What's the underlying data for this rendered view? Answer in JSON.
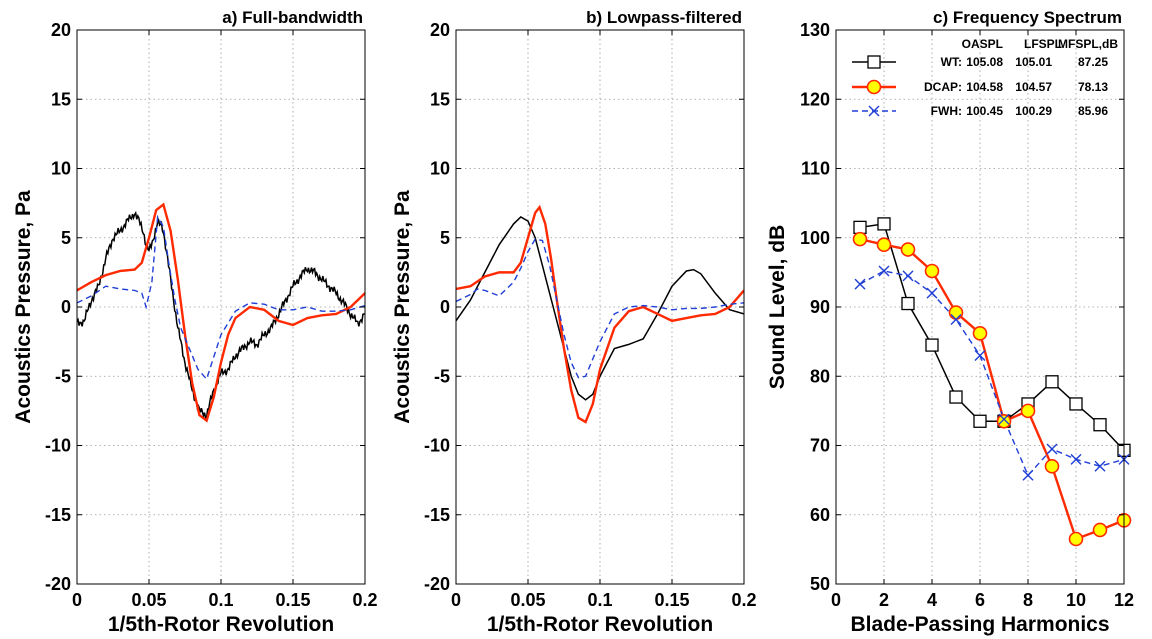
{
  "chart_data": [
    {
      "type": "line",
      "title": "a) Full-bandwidth",
      "xlabel": "1/5th-Rotor Revolution",
      "ylabel": "Acoustics Pressure, Pa",
      "xlim": [
        0,
        0.2
      ],
      "ylim": [
        -20,
        20
      ],
      "xticks": [
        0,
        0.05,
        0.1,
        0.15,
        0.2
      ],
      "xtick_labels": [
        "0",
        "0.05",
        "0.1",
        "0.15",
        "0.2"
      ],
      "yticks": [
        -20,
        -15,
        -10,
        -5,
        0,
        5,
        10,
        15,
        20
      ],
      "ytick_labels": [
        "-20",
        "-15",
        "-10",
        "-5",
        "0",
        "5",
        "10",
        "15",
        "20"
      ],
      "grid": true,
      "series": [
        {
          "color": "#000000",
          "style": "solid",
          "noisy": true,
          "x": [
            0,
            0.005,
            0.01,
            0.015,
            0.02,
            0.025,
            0.03,
            0.035,
            0.04,
            0.043,
            0.046,
            0.05,
            0.053,
            0.056,
            0.06,
            0.065,
            0.07,
            0.075,
            0.08,
            0.085,
            0.09,
            0.095,
            0.1,
            0.105,
            0.11,
            0.115,
            0.12,
            0.125,
            0.13,
            0.135,
            0.14,
            0.145,
            0.15,
            0.155,
            0.16,
            0.165,
            0.17,
            0.175,
            0.18,
            0.185,
            0.19,
            0.195,
            0.2
          ],
          "y": [
            -1.2,
            -1.0,
            0.5,
            1.5,
            3.5,
            5.0,
            5.5,
            6.2,
            6.8,
            6.3,
            5.2,
            4.0,
            4.8,
            6.3,
            5.5,
            2.0,
            -1.5,
            -4.0,
            -6.0,
            -7.5,
            -7.8,
            -6.0,
            -4.8,
            -4.5,
            -3.5,
            -3.0,
            -2.5,
            -2.7,
            -2.0,
            -1.5,
            -0.5,
            0.5,
            1.5,
            2.2,
            2.8,
            2.5,
            2.0,
            1.5,
            1.0,
            0.3,
            -0.5,
            -1.2,
            -0.5
          ]
        },
        {
          "color": "#ff2a00",
          "style": "solid",
          "noisy": false,
          "x": [
            0,
            0.01,
            0.02,
            0.03,
            0.04,
            0.045,
            0.05,
            0.055,
            0.06,
            0.065,
            0.07,
            0.075,
            0.08,
            0.085,
            0.09,
            0.095,
            0.1,
            0.105,
            0.11,
            0.12,
            0.13,
            0.14,
            0.15,
            0.16,
            0.17,
            0.18,
            0.19,
            0.2
          ],
          "y": [
            1.2,
            1.8,
            2.3,
            2.6,
            2.7,
            3.2,
            5.0,
            7.0,
            7.4,
            5.5,
            2.0,
            -2.0,
            -5.5,
            -7.8,
            -8.2,
            -6.5,
            -4.0,
            -2.0,
            -0.8,
            0.0,
            -0.2,
            -1.0,
            -1.3,
            -0.8,
            -0.6,
            -0.5,
            0.0,
            1.0
          ]
        },
        {
          "color": "#1f3fd6",
          "style": "dashed",
          "noisy": false,
          "x": [
            0,
            0.01,
            0.02,
            0.03,
            0.04,
            0.045,
            0.048,
            0.052,
            0.056,
            0.06,
            0.064,
            0.068,
            0.072,
            0.078,
            0.084,
            0.09,
            0.1,
            0.11,
            0.12,
            0.13,
            0.14,
            0.15,
            0.16,
            0.17,
            0.18,
            0.19,
            0.2
          ],
          "y": [
            0.3,
            0.8,
            1.5,
            1.3,
            1.2,
            1.0,
            0.0,
            1.8,
            6.5,
            5.8,
            3.0,
            0.5,
            -1.5,
            -3.0,
            -4.5,
            -5.2,
            -2.0,
            -0.3,
            0.3,
            0.2,
            -0.2,
            -0.2,
            0.0,
            -0.3,
            -0.3,
            -0.2,
            0.1
          ]
        }
      ]
    },
    {
      "type": "line",
      "title": "b) Lowpass-filtered",
      "xlabel": "1/5th-Rotor Revolution",
      "ylabel": "Acoustics Pressure, Pa",
      "xlim": [
        0,
        0.2
      ],
      "ylim": [
        -20,
        20
      ],
      "xticks": [
        0,
        0.05,
        0.1,
        0.15,
        0.2
      ],
      "xtick_labels": [
        "0",
        "0.05",
        "0.1",
        "0.15",
        "0.2"
      ],
      "yticks": [
        -20,
        -15,
        -10,
        -5,
        0,
        5,
        10,
        15,
        20
      ],
      "ytick_labels": [
        "-20",
        "-15",
        "-10",
        "-5",
        "0",
        "5",
        "10",
        "15",
        "20"
      ],
      "grid": true,
      "series": [
        {
          "color": "#000000",
          "style": "solid",
          "noisy": false,
          "x": [
            0,
            0.01,
            0.02,
            0.03,
            0.04,
            0.045,
            0.05,
            0.055,
            0.06,
            0.065,
            0.07,
            0.075,
            0.08,
            0.085,
            0.09,
            0.095,
            0.1,
            0.11,
            0.12,
            0.13,
            0.14,
            0.15,
            0.16,
            0.165,
            0.17,
            0.18,
            0.19,
            0.2
          ],
          "y": [
            -1.0,
            0.5,
            2.5,
            4.5,
            6.0,
            6.5,
            6.2,
            5.0,
            3.0,
            1.0,
            -1.0,
            -3.0,
            -5.0,
            -6.3,
            -6.7,
            -6.3,
            -5.0,
            -3.0,
            -2.7,
            -2.3,
            -0.5,
            1.5,
            2.6,
            2.7,
            2.4,
            1.0,
            -0.2,
            -0.5
          ]
        },
        {
          "color": "#ff2a00",
          "style": "solid",
          "noisy": false,
          "x": [
            0,
            0.01,
            0.02,
            0.03,
            0.04,
            0.045,
            0.05,
            0.055,
            0.058,
            0.062,
            0.066,
            0.07,
            0.075,
            0.08,
            0.085,
            0.09,
            0.095,
            0.1,
            0.11,
            0.12,
            0.13,
            0.14,
            0.15,
            0.16,
            0.17,
            0.18,
            0.19,
            0.2
          ],
          "y": [
            1.3,
            1.5,
            2.2,
            2.5,
            2.5,
            3.2,
            5.0,
            6.8,
            7.2,
            6.0,
            3.5,
            0.5,
            -3.0,
            -6.0,
            -8.0,
            -8.3,
            -7.0,
            -4.5,
            -1.5,
            -0.3,
            0.0,
            -0.5,
            -1.0,
            -0.8,
            -0.6,
            -0.5,
            0.0,
            1.2
          ]
        },
        {
          "color": "#1f3fd6",
          "style": "dashed",
          "noisy": false,
          "x": [
            0,
            0.01,
            0.015,
            0.02,
            0.03,
            0.04,
            0.045,
            0.05,
            0.055,
            0.06,
            0.065,
            0.07,
            0.075,
            0.08,
            0.085,
            0.09,
            0.1,
            0.11,
            0.12,
            0.13,
            0.14,
            0.15,
            0.16,
            0.17,
            0.18,
            0.19,
            0.2
          ],
          "y": [
            0.4,
            0.9,
            1.3,
            1.2,
            0.8,
            1.8,
            2.8,
            4.0,
            4.9,
            4.8,
            3.0,
            0.5,
            -2.0,
            -4.0,
            -5.1,
            -5.0,
            -2.5,
            -0.5,
            0.0,
            0.1,
            0.0,
            -0.2,
            -0.1,
            -0.1,
            0.0,
            0.2,
            0.3
          ]
        }
      ]
    },
    {
      "type": "line",
      "title": "c) Frequency Spectrum",
      "xlabel": "Blade-Passing Harmonics",
      "ylabel": "Sound Level, dB",
      "xlim": [
        0,
        12
      ],
      "ylim": [
        50,
        130
      ],
      "xticks": [
        0,
        2,
        4,
        6,
        8,
        10,
        12
      ],
      "xtick_labels": [
        "0",
        "2",
        "4",
        "6",
        "8",
        "10",
        "12"
      ],
      "yticks": [
        50,
        60,
        70,
        80,
        90,
        100,
        110,
        120,
        130
      ],
      "ytick_labels": [
        "50",
        "60",
        "70",
        "80",
        "90",
        "100",
        "110",
        "120",
        "130"
      ],
      "grid": true,
      "x": [
        1,
        2,
        3,
        4,
        5,
        6,
        7,
        8,
        9,
        10,
        11,
        12
      ],
      "series": [
        {
          "name": "WT:",
          "color": "#000000",
          "style": "solid",
          "marker": "square",
          "values": [
            101.5,
            102.0,
            90.5,
            84.5,
            77.0,
            73.5,
            73.5,
            76.0,
            79.2,
            76.0,
            73.0,
            69.3
          ]
        },
        {
          "name": "DCAP:",
          "color": "#ff2a00",
          "style": "solid",
          "marker": "circle",
          "values": [
            99.8,
            99.0,
            98.3,
            95.2,
            89.2,
            86.2,
            73.5,
            75.0,
            67.0,
            56.5,
            57.8,
            59.2
          ]
        },
        {
          "name": "FWH:",
          "color": "#1f3fd6",
          "style": "dashed",
          "marker": "x",
          "values": [
            93.3,
            95.2,
            94.5,
            92.0,
            88.2,
            83.0,
            73.8,
            65.7,
            69.5,
            68.0,
            67.0,
            68.0
          ]
        }
      ],
      "legend": {
        "placement": "top-left",
        "columns": [
          "OASPL",
          "LFSPL",
          "MFSPL,dB"
        ],
        "rows": [
          {
            "label": "WT:",
            "values": [
              "105.08",
              "105.01",
              "87.25"
            ]
          },
          {
            "label": "DCAP:",
            "values": [
              "104.58",
              "104.57",
              "78.13"
            ]
          },
          {
            "label": "FWH:",
            "values": [
              "100.45",
              "100.29",
              "85.96"
            ]
          }
        ]
      }
    }
  ]
}
